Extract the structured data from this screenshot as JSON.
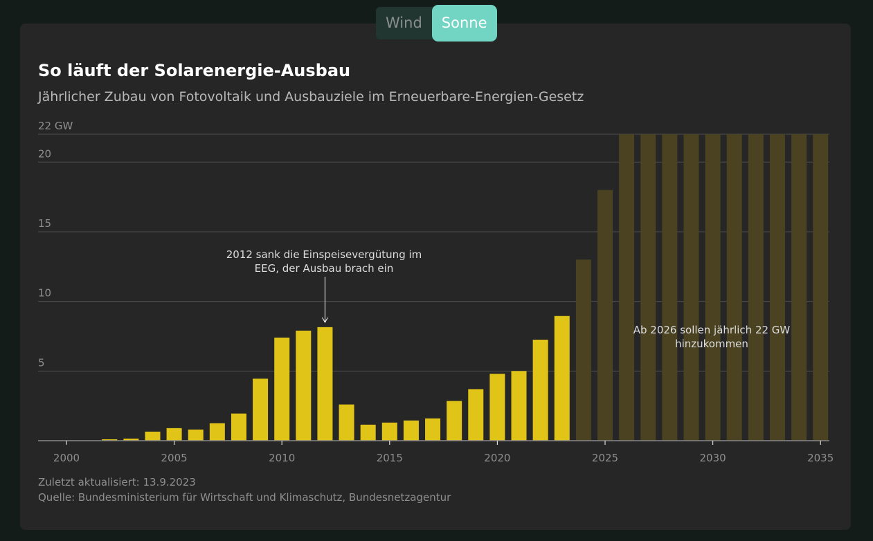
{
  "toggle": {
    "options": [
      "Wind",
      "Sonne"
    ],
    "active": "Sonne"
  },
  "title": "So läuft der Solarenergie-Ausbau",
  "subtitle": "Jährlicher Zubau von Fotovoltaik und Ausbauziele im Erneuerbare-Energien-Gesetz",
  "footer": {
    "updated": "Zuletzt aktualisiert: 13.9.2023",
    "source": "Quelle: Bundesministerium für Wirtschaft und Klimaschutz, Bundesnetzagentur"
  },
  "colors": {
    "actual": "#e0c417",
    "target": "#4a4220",
    "background": "#262626",
    "accent": "#72d4c3"
  },
  "chart_data": {
    "type": "bar",
    "ylim": [
      0,
      22
    ],
    "yticks": [
      5,
      10,
      15,
      20,
      22
    ],
    "ytick_labels": [
      "5",
      "10",
      "15",
      "20",
      "22 GW"
    ],
    "xticks": [
      2000,
      2005,
      2010,
      2015,
      2020,
      2025,
      2030,
      2035
    ],
    "grid": true,
    "series": [
      {
        "kind": "actual",
        "x": [
          2000,
          2001,
          2002,
          2003,
          2004,
          2005,
          2006,
          2007,
          2008,
          2009,
          2010,
          2011,
          2012,
          2013,
          2014,
          2015,
          2016,
          2017,
          2018,
          2019,
          2020,
          2021,
          2022,
          2023
        ],
        "values": [
          0,
          0,
          0.1,
          0.15,
          0.65,
          0.9,
          0.8,
          1.25,
          1.95,
          4.45,
          7.4,
          7.9,
          8.15,
          2.6,
          1.15,
          1.3,
          1.45,
          1.6,
          2.85,
          3.7,
          4.8,
          5.0,
          7.25,
          8.95
        ]
      },
      {
        "kind": "target",
        "x": [
          2024,
          2025,
          2026,
          2027,
          2028,
          2029,
          2030,
          2031,
          2032,
          2033,
          2034,
          2035
        ],
        "values": [
          13,
          18,
          22,
          22,
          22,
          22,
          22,
          22,
          22,
          22,
          22,
          22
        ]
      }
    ],
    "annotations": [
      {
        "year": 2012,
        "lines": [
          "2012 sank die Einspeisevergütung im",
          "EEG, der Ausbau brach ein"
        ]
      },
      {
        "year": 2030,
        "lines": [
          "Ab 2026 sollen jährlich 22 GW",
          "hinzukommen"
        ]
      }
    ]
  }
}
